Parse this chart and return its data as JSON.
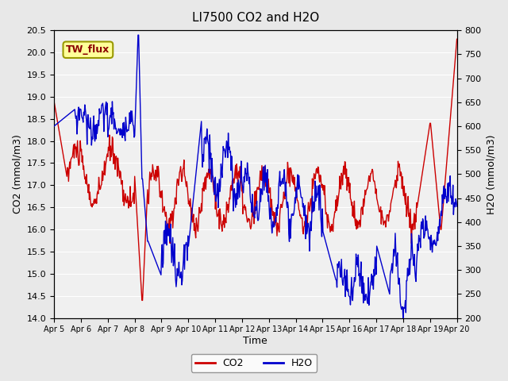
{
  "title": "LI7500 CO2 and H2O",
  "xlabel": "Time",
  "ylabel_left": "CO2 (mmol/m3)",
  "ylabel_right": "H2O (mmol/m3)",
  "co2_color": "#CC0000",
  "h2o_color": "#0000CC",
  "background_color": "#E8E8E8",
  "plot_bg_color": "#F0F0F0",
  "grid_color": "white",
  "ylim_left": [
    14.0,
    20.5
  ],
  "ylim_right": [
    200,
    800
  ],
  "yticks_left": [
    14.0,
    14.5,
    15.0,
    15.5,
    16.0,
    16.5,
    17.0,
    17.5,
    18.0,
    18.5,
    19.0,
    19.5,
    20.0,
    20.5
  ],
  "yticks_right": [
    200,
    250,
    300,
    350,
    400,
    450,
    500,
    550,
    600,
    650,
    700,
    750,
    800
  ],
  "xtick_labels": [
    "Apr 5",
    "Apr 6",
    "Apr 7",
    "Apr 8",
    "Apr 9",
    "Apr 10",
    "Apr 11",
    "Apr 12",
    "Apr 13",
    "Apr 14",
    "Apr 15",
    "Apr 16",
    "Apr 17",
    "Apr 18",
    "Apr 19",
    "Apr 20"
  ],
  "legend_label_co2": "CO2",
  "legend_label_h2o": "H2O",
  "annotation_text": "TW_flux",
  "annotation_bg": "#FFFF99",
  "annotation_border": "#999900"
}
